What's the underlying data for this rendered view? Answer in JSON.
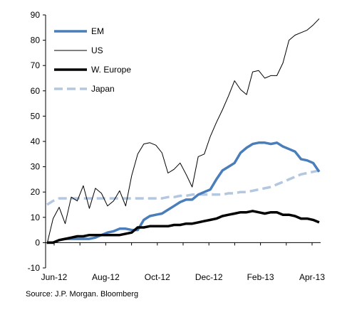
{
  "chart_data": {
    "type": "line",
    "x_labels": [
      "Jun-12",
      "Aug-12",
      "Oct-12",
      "Dec-12",
      "Feb-13",
      "Apr-13"
    ],
    "ylim": [
      -10,
      90
    ],
    "yticks": [
      -10,
      0,
      10,
      20,
      30,
      40,
      50,
      60,
      70,
      80,
      90
    ],
    "grid": false,
    "legend_position": "top-left",
    "series": [
      {
        "name": "EM",
        "color": "#4a7ebb",
        "style": "thick-solid",
        "values": [
          0,
          0,
          1,
          1.5,
          1.5,
          1.5,
          1.5,
          1.5,
          2,
          3,
          4,
          4.5,
          5.5,
          5.5,
          5,
          5,
          9,
          10.5,
          11,
          11.5,
          13,
          14.5,
          16,
          17,
          17,
          19,
          20,
          21,
          25,
          28.5,
          30,
          31.5,
          35.5,
          37.5,
          39,
          39.5,
          39.5,
          39,
          39.5,
          38,
          37,
          36,
          33,
          32.5,
          31.5,
          28
        ]
      },
      {
        "name": "US",
        "color": "#000000",
        "style": "thin-solid",
        "values": [
          -0.5,
          9.5,
          14,
          7.5,
          18,
          16.5,
          22.5,
          13.5,
          21.5,
          19.5,
          14.5,
          16.5,
          20.5,
          14.5,
          26.5,
          35,
          39,
          39.5,
          38.5,
          35.5,
          27.5,
          29,
          31.5,
          27,
          22,
          34,
          35,
          42,
          47.5,
          52.5,
          58,
          64,
          60.5,
          58.5,
          67.5,
          68,
          65,
          66,
          66,
          71,
          80,
          82,
          83,
          84,
          86,
          88.5
        ]
      },
      {
        "name": "W. Europe",
        "color": "#000000",
        "style": "thick-solid",
        "values": [
          0,
          0,
          1,
          1.5,
          2,
          2.5,
          2.5,
          3,
          3,
          3,
          3,
          3,
          3,
          3.5,
          4,
          6,
          6,
          6.5,
          6.5,
          6.5,
          6.5,
          7,
          7,
          7.5,
          7.5,
          8,
          8.5,
          9,
          9.5,
          10.5,
          11,
          11.5,
          12,
          12,
          12.5,
          12,
          11.5,
          12,
          12,
          11,
          11,
          10.5,
          9.5,
          9.5,
          9,
          8
        ]
      },
      {
        "name": "Japan",
        "color": "#b4c7e0",
        "style": "thick-dashed",
        "values": [
          15,
          16.5,
          17.5,
          17.5,
          17.5,
          17.5,
          17.5,
          17.5,
          17.5,
          17.5,
          17.5,
          17.5,
          17.5,
          17.5,
          17.5,
          17.5,
          17.5,
          17.5,
          17.5,
          17.5,
          18,
          18,
          18.5,
          18.5,
          19,
          19,
          19,
          19,
          19,
          19,
          19.5,
          19.5,
          20,
          20,
          20.5,
          21,
          21.5,
          22,
          23,
          24,
          25,
          26,
          27,
          27.5,
          28,
          28.5
        ]
      }
    ]
  },
  "source": "Source: J.P. Morgan. Bloomberg"
}
